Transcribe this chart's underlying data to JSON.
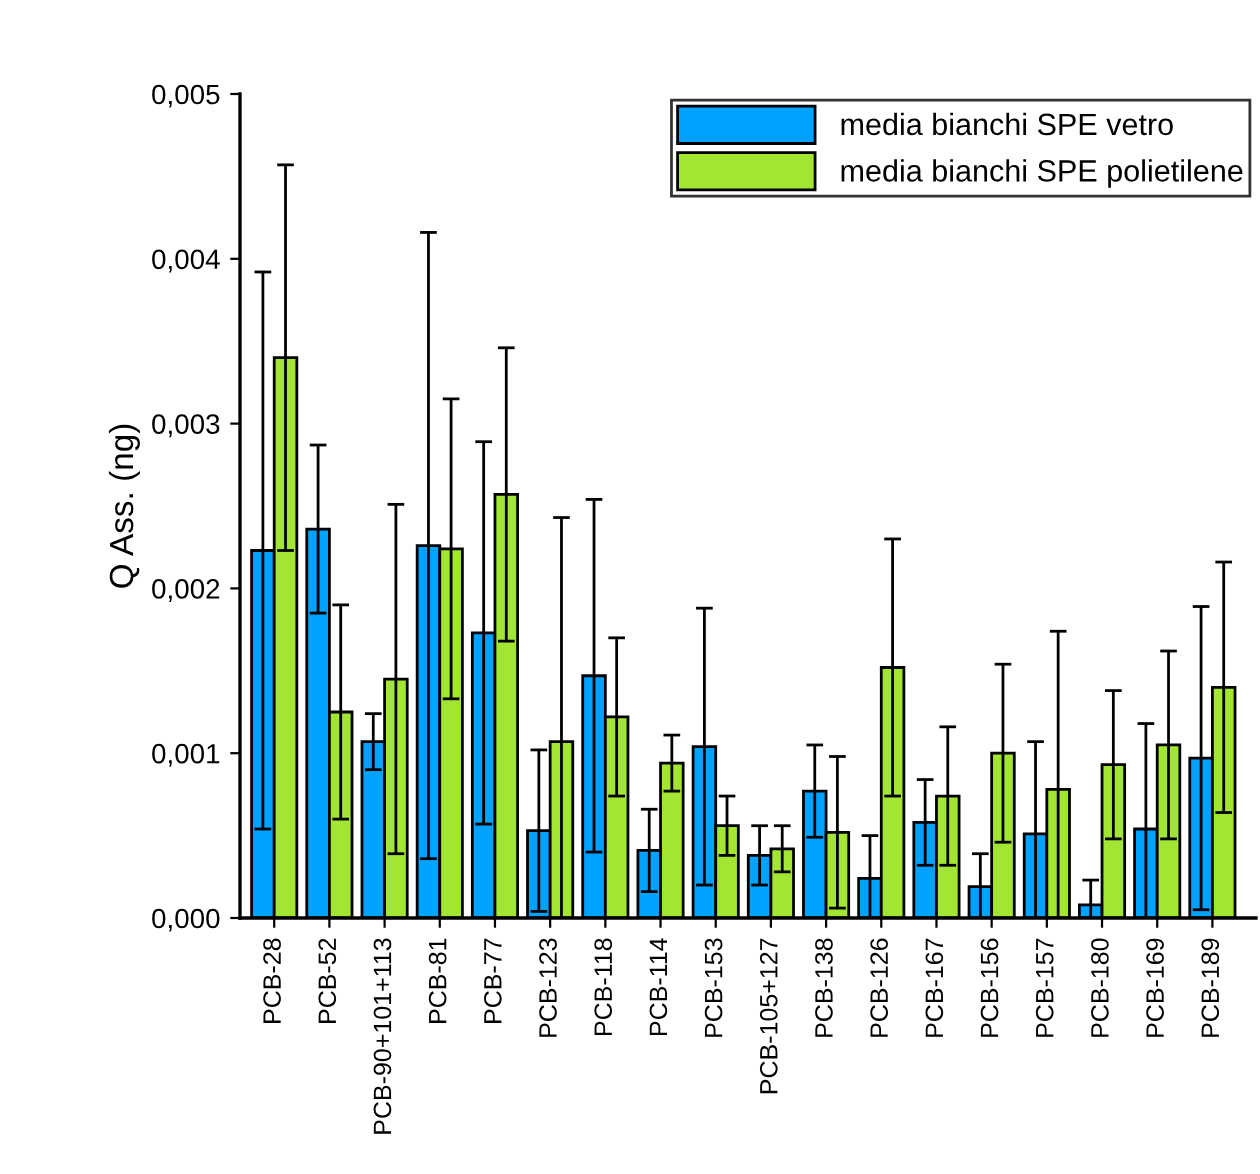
{
  "chart_data": {
    "type": "bar",
    "ylabel": "Q Ass. (ng)",
    "categories": [
      "PCB-28",
      "PCB-52",
      "PCB-90+101+113",
      "PCB-81",
      "PCB-77",
      "PCB-123",
      "PCB-118",
      "PCB-114",
      "PCB-153",
      "PCB-105+127",
      "PCB-138",
      "PCB-126",
      "PCB-167",
      "PCB-156",
      "PCB-157",
      "PCB-180",
      "PCB-169",
      "PCB-189"
    ],
    "series": [
      {
        "name": "media bianchi SPE vetro",
        "color": "#00a2ff",
        "values": [
          0.00223,
          0.00236,
          0.00107,
          0.00226,
          0.00173,
          0.00053,
          0.00147,
          0.00041,
          0.00104,
          0.00038,
          0.00077,
          0.00024,
          0.00058,
          0.00019,
          0.00051,
          8e-05,
          0.00054,
          0.00097
        ],
        "errors": [
          0.00169,
          0.00051,
          0.00017,
          0.0019,
          0.00116,
          0.00049,
          0.00107,
          0.00025,
          0.00084,
          0.00018,
          0.00028,
          0.00026,
          0.00026,
          0.0002,
          0.00056,
          0.00015,
          0.00064,
          0.00092
        ]
      },
      {
        "name": "media bianchi SPE polietilene",
        "color": "#a2e633",
        "values": [
          0.0034,
          0.00125,
          0.00145,
          0.00224,
          0.00257,
          0.00107,
          0.00122,
          0.00094,
          0.00056,
          0.00042,
          0.00052,
          0.00152,
          0.00074,
          0.001,
          0.00078,
          0.00093,
          0.00105,
          0.0014
        ],
        "errors": [
          0.00117,
          0.00065,
          0.00106,
          0.00091,
          0.00089,
          0.00136,
          0.00048,
          0.00017,
          0.00018,
          0.00014,
          0.00046,
          0.00078,
          0.00042,
          0.00054,
          0.00096,
          0.00045,
          0.00057,
          0.00076
        ]
      }
    ],
    "ylim": [
      0,
      0.005
    ],
    "yticks": [
      {
        "value": 0,
        "label": "0,000"
      },
      {
        "value": 0.001,
        "label": "0,001"
      },
      {
        "value": 0.002,
        "label": "0,002"
      },
      {
        "value": 0.003,
        "label": "0,003"
      },
      {
        "value": 0.004,
        "label": "0,004"
      },
      {
        "value": 0.005,
        "label": "0,005"
      }
    ],
    "grid": false,
    "legend": "top right"
  }
}
